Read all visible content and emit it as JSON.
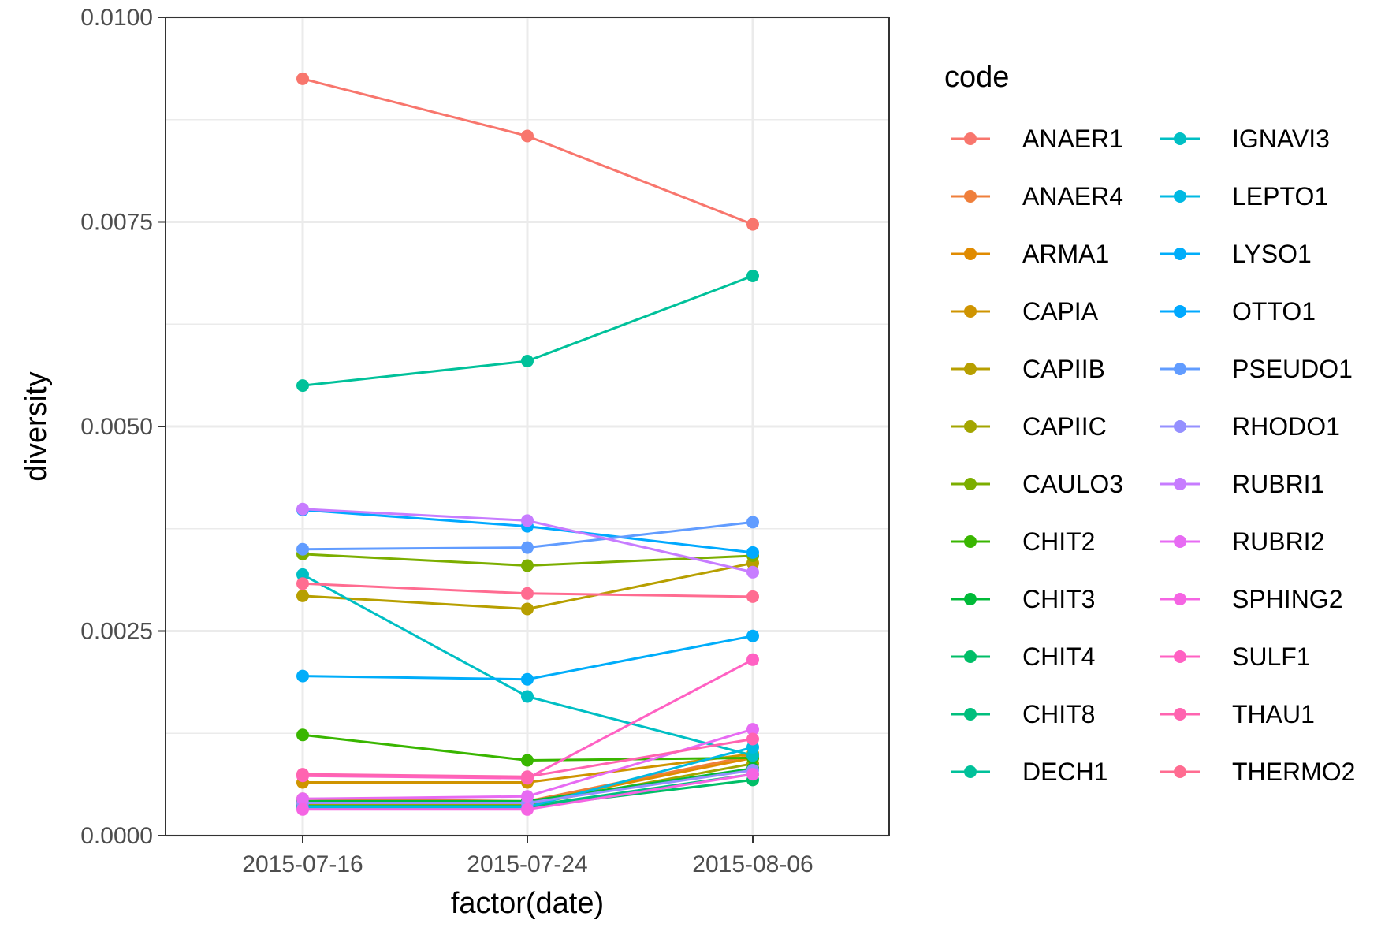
{
  "chart_data": {
    "type": "line",
    "title": "",
    "xlabel": "factor(date)",
    "ylabel": "diversity",
    "categories": [
      "2015-07-16",
      "2015-07-24",
      "2015-08-06"
    ],
    "ylim": [
      0,
      0.01
    ],
    "yticks": [
      "0.0000",
      "0.0025",
      "0.0050",
      "0.0075",
      "0.0100"
    ],
    "ytick_values": [
      0,
      0.0025,
      0.005,
      0.0075,
      0.01
    ],
    "grid": true,
    "legend_title": "code",
    "legend_position": "right",
    "series": [
      {
        "name": "ANAER1",
        "color": "#F8766D",
        "values": [
          0.00925,
          0.00855,
          0.00747
        ]
      },
      {
        "name": "ANAER4",
        "color": "#EF7F3B",
        "values": [
          0.00045,
          0.00042,
          0.00098
        ]
      },
      {
        "name": "ARMA1",
        "color": "#E08B00",
        "values": [
          0.0004,
          0.0004,
          0.00095
        ]
      },
      {
        "name": "CAPIA",
        "color": "#CF9400",
        "values": [
          0.00065,
          0.00065,
          0.001
        ]
      },
      {
        "name": "CAPIIB",
        "color": "#B79F00",
        "values": [
          0.00293,
          0.00277,
          0.00333
        ]
      },
      {
        "name": "CAPIIC",
        "color": "#A3A500",
        "values": [
          0.00038,
          0.00038,
          0.00088
        ]
      },
      {
        "name": "CAULO3",
        "color": "#7CAE00",
        "values": [
          0.00344,
          0.0033,
          0.00342
        ]
      },
      {
        "name": "CHIT2",
        "color": "#39B600",
        "values": [
          0.00123,
          0.00092,
          0.00095
        ]
      },
      {
        "name": "CHIT3",
        "color": "#00BA38",
        "values": [
          0.00042,
          0.00042,
          0.00082
        ]
      },
      {
        "name": "CHIT4",
        "color": "#00BE67",
        "values": [
          0.00035,
          0.00035,
          0.00068
        ]
      },
      {
        "name": "CHIT8",
        "color": "#00BF7D",
        "values": [
          0.00036,
          0.00036,
          0.00075
        ]
      },
      {
        "name": "DECH1",
        "color": "#00C19A",
        "values": [
          0.0055,
          0.0058,
          0.00684
        ]
      },
      {
        "name": "IGNAVI3",
        "color": "#00BFC4",
        "values": [
          0.00319,
          0.0017,
          0.00098
        ]
      },
      {
        "name": "LEPTO1",
        "color": "#00B9E3",
        "values": [
          0.00035,
          0.00035,
          0.00108
        ]
      },
      {
        "name": "LYSO1",
        "color": "#00ADFA",
        "values": [
          0.00195,
          0.00191,
          0.00244
        ]
      },
      {
        "name": "OTTO1",
        "color": "#00A9FF",
        "values": [
          0.00398,
          0.00378,
          0.00346
        ]
      },
      {
        "name": "PSEUDO1",
        "color": "#619CFF",
        "values": [
          0.0035,
          0.00352,
          0.00383
        ]
      },
      {
        "name": "RHODO1",
        "color": "#9590FF",
        "values": [
          0.0004,
          0.0004,
          0.0008
        ]
      },
      {
        "name": "RUBRI1",
        "color": "#C77CFF",
        "values": [
          0.00399,
          0.00385,
          0.00322
        ]
      },
      {
        "name": "RUBRI2",
        "color": "#E76BF3",
        "values": [
          0.00045,
          0.00048,
          0.0013
        ]
      },
      {
        "name": "SPHING2",
        "color": "#F564E3",
        "values": [
          0.00032,
          0.00032,
          0.00075
        ]
      },
      {
        "name": "SULF1",
        "color": "#FF61C3",
        "values": [
          0.00073,
          0.0007,
          0.00215
        ]
      },
      {
        "name": "THAU1",
        "color": "#FF64B0",
        "values": [
          0.00075,
          0.00072,
          0.00118
        ]
      },
      {
        "name": "THERMO2",
        "color": "#FF6C91",
        "values": [
          0.00308,
          0.00296,
          0.00292
        ]
      }
    ]
  }
}
